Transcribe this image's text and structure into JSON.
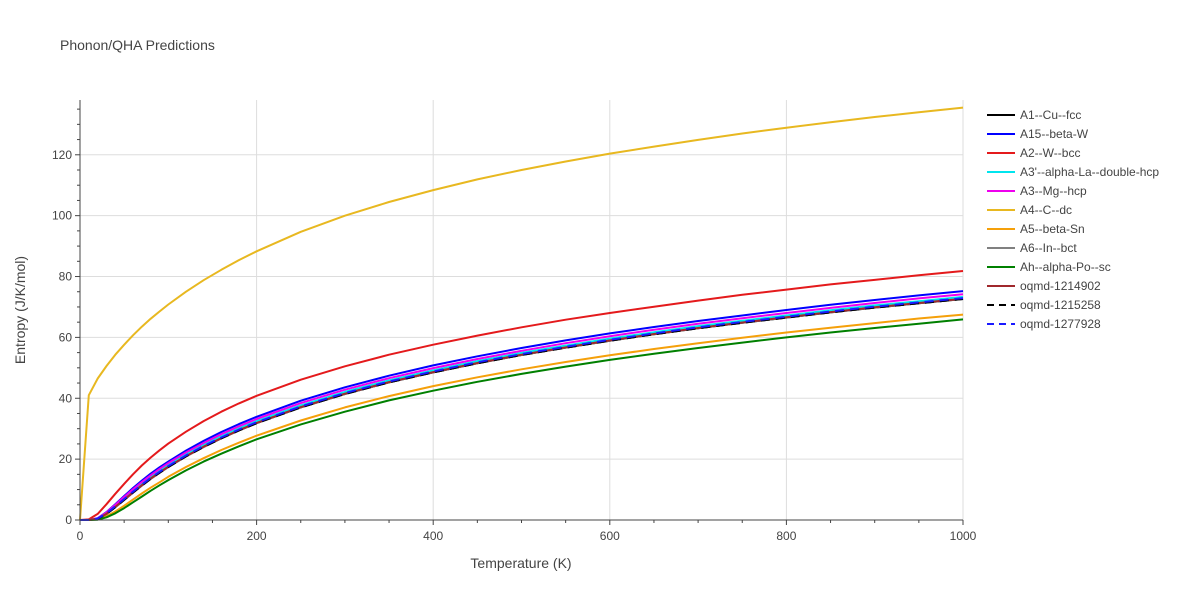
{
  "chart_data": {
    "type": "line",
    "title": "Phonon/QHA Predictions",
    "xlabel": "Temperature (K)",
    "ylabel": "Entropy (J/K/mol)",
    "xlim": [
      0,
      1000
    ],
    "ylim": [
      0,
      138
    ],
    "xticks": [
      0,
      200,
      400,
      600,
      800,
      1000
    ],
    "yticks": [
      0,
      20,
      40,
      60,
      80,
      100,
      120
    ],
    "grid": true,
    "legend_position": "right",
    "x": [
      0,
      10,
      20,
      30,
      40,
      50,
      60,
      70,
      80,
      90,
      100,
      120,
      140,
      160,
      180,
      200,
      250,
      300,
      350,
      400,
      450,
      500,
      550,
      600,
      650,
      700,
      750,
      800,
      850,
      900,
      950,
      1000
    ],
    "series": [
      {
        "name": "A1--Cu--fcc",
        "color": "#000000",
        "dash": "solid",
        "values": [
          0,
          0,
          0.4,
          2.0,
          4.2,
          6.6,
          9.0,
          11.3,
          13.5,
          15.5,
          17.4,
          20.9,
          24.0,
          26.8,
          29.4,
          31.8,
          37.0,
          41.4,
          45.2,
          48.5,
          51.5,
          54.2,
          56.6,
          58.9,
          61.0,
          63.0,
          64.8,
          66.5,
          68.2,
          69.8,
          71.2,
          72.6
        ]
      },
      {
        "name": "A15--beta-W",
        "color": "#0000ff",
        "dash": "solid",
        "values": [
          0,
          0,
          0.6,
          2.6,
          5.2,
          7.9,
          10.5,
          12.9,
          15.2,
          17.3,
          19.2,
          22.8,
          26.0,
          28.9,
          31.5,
          33.9,
          39.2,
          43.6,
          47.4,
          50.8,
          53.8,
          56.5,
          59.0,
          61.3,
          63.4,
          65.4,
          67.2,
          69.0,
          70.7,
          72.3,
          73.8,
          75.2
        ]
      },
      {
        "name": "A2--W--bcc",
        "color": "#e41a1c",
        "dash": "solid",
        "values": [
          0,
          0.2,
          2.0,
          5.2,
          8.6,
          11.9,
          15.0,
          17.9,
          20.5,
          22.9,
          25.1,
          29.0,
          32.5,
          35.6,
          38.3,
          40.8,
          46.1,
          50.5,
          54.3,
          57.6,
          60.6,
          63.3,
          65.8,
          68.0,
          70.1,
          72.1,
          74.0,
          75.7,
          77.4,
          78.9,
          80.4,
          81.8
        ]
      },
      {
        "name": "A3'--alpha-La--double-hcp",
        "color": "#00e5ee",
        "dash": "solid",
        "values": [
          0,
          0,
          0.5,
          2.3,
          4.7,
          7.2,
          9.7,
          12.0,
          14.2,
          16.2,
          18.1,
          21.6,
          24.7,
          27.5,
          30.1,
          32.5,
          37.7,
          42.1,
          45.9,
          49.2,
          52.2,
          54.9,
          57.3,
          59.6,
          61.7,
          63.7,
          65.5,
          67.2,
          68.9,
          70.5,
          71.9,
          73.3
        ]
      },
      {
        "name": "A3--Mg--hcp",
        "color": "#ee00ee",
        "dash": "solid",
        "values": [
          0,
          0,
          0.6,
          2.5,
          5.0,
          7.6,
          10.1,
          12.5,
          14.7,
          16.8,
          18.7,
          22.2,
          25.3,
          28.2,
          30.8,
          33.2,
          38.4,
          42.8,
          46.6,
          49.9,
          52.9,
          55.6,
          58.1,
          60.4,
          62.5,
          64.5,
          66.3,
          68.0,
          69.7,
          71.3,
          72.8,
          74.2
        ]
      },
      {
        "name": "A4--C--dc",
        "color": "#e8b820",
        "dash": "solid",
        "values": [
          0,
          41.0,
          46.5,
          50.6,
          54.3,
          57.6,
          60.7,
          63.5,
          66.1,
          68.5,
          70.8,
          75.0,
          78.8,
          82.2,
          85.4,
          88.3,
          94.7,
          100.0,
          104.5,
          108.4,
          111.9,
          115.0,
          117.8,
          120.4,
          122.7,
          124.9,
          127.0,
          128.9,
          130.7,
          132.4,
          134.0,
          135.5
        ]
      },
      {
        "name": "A5--beta-Sn",
        "color": "#f5a00a",
        "dash": "solid",
        "values": [
          0,
          0,
          0.2,
          1.2,
          2.8,
          4.7,
          6.7,
          8.7,
          10.6,
          12.4,
          14.2,
          17.4,
          20.3,
          23.0,
          25.4,
          27.7,
          32.7,
          37.0,
          40.7,
          44.0,
          46.9,
          49.5,
          51.9,
          54.1,
          56.2,
          58.1,
          59.9,
          61.6,
          63.2,
          64.7,
          66.2,
          67.5
        ]
      },
      {
        "name": "A6--In--bct",
        "color": "#808080",
        "dash": "solid",
        "values": [
          0,
          0,
          0.4,
          2.0,
          4.2,
          6.6,
          9.0,
          11.3,
          13.5,
          15.5,
          17.4,
          20.9,
          24.0,
          26.8,
          29.4,
          31.8,
          37.0,
          41.4,
          45.2,
          48.5,
          51.5,
          54.2,
          56.6,
          58.9,
          61.0,
          63.0,
          64.8,
          66.5,
          68.2,
          69.8,
          71.2,
          72.6
        ]
      },
      {
        "name": "Ah--alpha-Po--sc",
        "color": "#008000",
        "dash": "solid",
        "values": [
          0,
          0,
          0.1,
          0.9,
          2.2,
          3.9,
          5.8,
          7.7,
          9.6,
          11.4,
          13.1,
          16.3,
          19.2,
          21.8,
          24.2,
          26.5,
          31.4,
          35.6,
          39.3,
          42.5,
          45.4,
          48.0,
          50.4,
          52.6,
          54.6,
          56.5,
          58.3,
          60.0,
          61.6,
          63.1,
          64.5,
          65.9
        ]
      },
      {
        "name": "oqmd-1214902",
        "color": "#a0282c",
        "dash": "solid",
        "values": [
          0,
          0,
          0.4,
          2.0,
          4.3,
          6.7,
          9.1,
          11.4,
          13.6,
          15.6,
          17.5,
          21.0,
          24.1,
          26.9,
          29.5,
          31.9,
          37.1,
          41.5,
          45.3,
          48.6,
          51.6,
          54.3,
          56.7,
          59.0,
          61.1,
          63.1,
          64.9,
          66.6,
          68.3,
          69.9,
          71.3,
          72.7
        ]
      },
      {
        "name": "oqmd-1215258",
        "color": "#000000",
        "dash": "dash",
        "values": [
          0,
          0,
          0.4,
          2.0,
          4.2,
          6.6,
          9.0,
          11.3,
          13.5,
          15.5,
          17.4,
          20.9,
          24.0,
          26.8,
          29.4,
          31.8,
          37.0,
          41.4,
          45.2,
          48.5,
          51.5,
          54.2,
          56.6,
          58.9,
          61.0,
          63.0,
          64.8,
          66.5,
          68.2,
          69.8,
          71.2,
          72.6
        ]
      },
      {
        "name": "oqmd-1277928",
        "color": "#1a1aff",
        "dash": "dash",
        "values": [
          0,
          0,
          0.5,
          2.2,
          4.5,
          6.9,
          9.3,
          11.6,
          13.8,
          15.8,
          17.7,
          21.2,
          24.3,
          27.1,
          29.7,
          32.1,
          37.3,
          41.7,
          45.5,
          48.8,
          51.8,
          54.5,
          56.9,
          59.2,
          61.3,
          63.3,
          65.1,
          66.8,
          68.5,
          70.1,
          71.5,
          72.9
        ]
      }
    ]
  }
}
